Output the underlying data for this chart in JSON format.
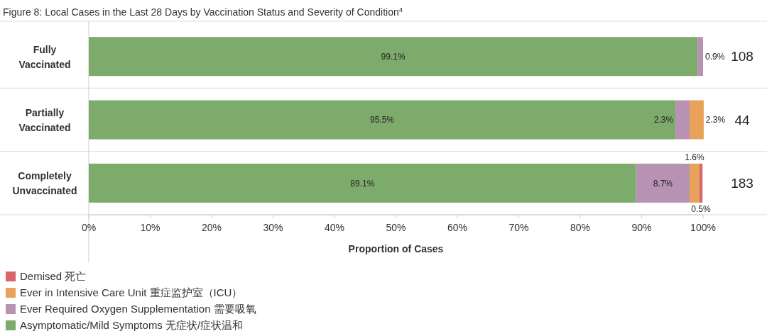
{
  "chart_data": {
    "type": "bar",
    "orientation": "horizontal",
    "stacked": true,
    "title": "Figure 8: Local Cases in the Last 28 Days by Vaccination Status and Severity of Condition$^{4}$",
    "xlabel": "Proportion of Cases",
    "categories": [
      "Fully Vaccinated",
      "Partially Vaccinated",
      "Completely Unvaccinated"
    ],
    "series": [
      {
        "name": "Asymptomatic/Mild Symptoms 无症状/症状温和",
        "color": "#7dab6c",
        "values": [
          99.1,
          95.5,
          89.1
        ],
        "value_labels": [
          "99.1%",
          "95.5%",
          "89.1%"
        ]
      },
      {
        "name": "Ever Required Oxygen Supplementation 需要吸氧",
        "color": "#b792b3",
        "values": [
          0.9,
          2.3,
          8.7
        ],
        "value_labels": [
          "0.9%",
          "2.3%",
          "8.7%"
        ]
      },
      {
        "name": "Ever in Intensive Care Unit 重症监护室（ICU）",
        "color": "#e8a25a",
        "values": [
          0,
          2.3,
          1.6
        ],
        "value_labels": [
          null,
          "2.3%",
          "1.6%"
        ]
      },
      {
        "name": "Demised 死亡",
        "color": "#d9666b",
        "values": [
          0,
          0,
          0.5
        ],
        "value_labels": [
          null,
          null,
          "0.5%"
        ]
      }
    ],
    "annotations": [
      "108",
      "44",
      "183"
    ],
    "xlim": [
      0,
      100
    ],
    "xticks": [
      {
        "value": 0,
        "label": "0%"
      },
      {
        "value": 10,
        "label": "10%"
      },
      {
        "value": 20,
        "label": "20%"
      },
      {
        "value": 30,
        "label": "30%"
      },
      {
        "value": 40,
        "label": "40%"
      },
      {
        "value": 50,
        "label": "50%"
      },
      {
        "value": 60,
        "label": "60%"
      },
      {
        "value": 70,
        "label": "70%"
      },
      {
        "value": 80,
        "label": "80%"
      },
      {
        "value": 90,
        "label": "90%"
      },
      {
        "value": 100,
        "label": "100%"
      }
    ],
    "legend": "bottom left"
  }
}
